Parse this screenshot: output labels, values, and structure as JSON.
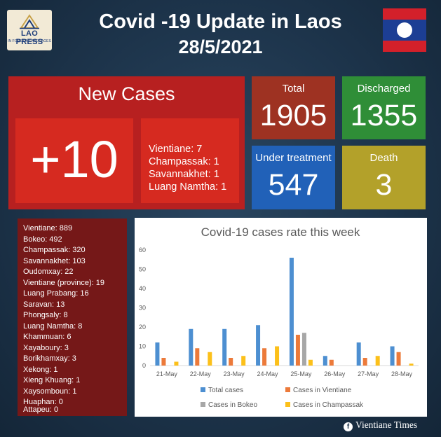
{
  "header": {
    "logo_text": "LAO PRESS",
    "logo_subtext": "IN FOREIGN LANGUAGES",
    "title": "Covid -19 Update in Laos",
    "date": "28/5/2021"
  },
  "new_cases": {
    "label": "New Cases",
    "value": "+10",
    "breakdown": [
      "Vientiane: 7",
      "Champassak: 1",
      "Savannakhet: 1",
      "Luang Namtha: 1"
    ]
  },
  "stats": {
    "total": {
      "label": "Total",
      "value": "1905",
      "color": "#9e3222"
    },
    "discharged": {
      "label": "Discharged",
      "value": "1355",
      "color": "#2f8e37"
    },
    "under_treatment": {
      "label": "Under treatment",
      "value": "547",
      "color": "#2161b8"
    },
    "death": {
      "label": "Death",
      "value": "3",
      "color": "#b3a12a"
    }
  },
  "province_list": [
    "Vientiane: 889",
    "Bokeo: 492",
    "Champassak: 320",
    "Savannakhet: 103",
    "Oudomxay: 22",
    "Vientiane (province): 19",
    "Luang Prabang: 16",
    "Saravan: 13",
    "Phongsaly: 8",
    "Luang Namtha: 8",
    "Khammuan: 6",
    "Xayaboury: 3",
    "Borikhamxay: 3",
    "Xekong: 1",
    "Xieng Khuang: 1",
    "Xaysomboun: 1",
    "Huaphan: 0",
    "Attapeu: 0"
  ],
  "chart_data": {
    "type": "bar",
    "title": "Covid-19 cases rate this week",
    "categories": [
      "21-May",
      "22-May",
      "23-May",
      "24-May",
      "25-May",
      "26-May",
      "27-May",
      "28-May"
    ],
    "ylim": [
      0,
      60
    ],
    "yticks": [
      0,
      10,
      20,
      30,
      40,
      50,
      60
    ],
    "grid": false,
    "legend": "bottom",
    "series": [
      {
        "name": "Total cases",
        "color": "#4d8fd1",
        "values": [
          12,
          19,
          19,
          21,
          56,
          5,
          12,
          10
        ]
      },
      {
        "name": "Cases in Vientiane",
        "color": "#ec7a3a",
        "values": [
          4,
          9,
          4,
          9,
          16,
          3,
          4,
          7
        ]
      },
      {
        "name": "Cases in Bokeo",
        "color": "#a7a7a7",
        "values": [
          0,
          0,
          0,
          0,
          17,
          0,
          0,
          0
        ]
      },
      {
        "name": "Cases in Champassak",
        "color": "#fcc01a",
        "values": [
          2,
          7,
          5,
          10,
          3,
          0,
          5,
          1
        ]
      }
    ]
  },
  "footer": {
    "fb_icon": "f",
    "source": "Vientiane Times"
  }
}
